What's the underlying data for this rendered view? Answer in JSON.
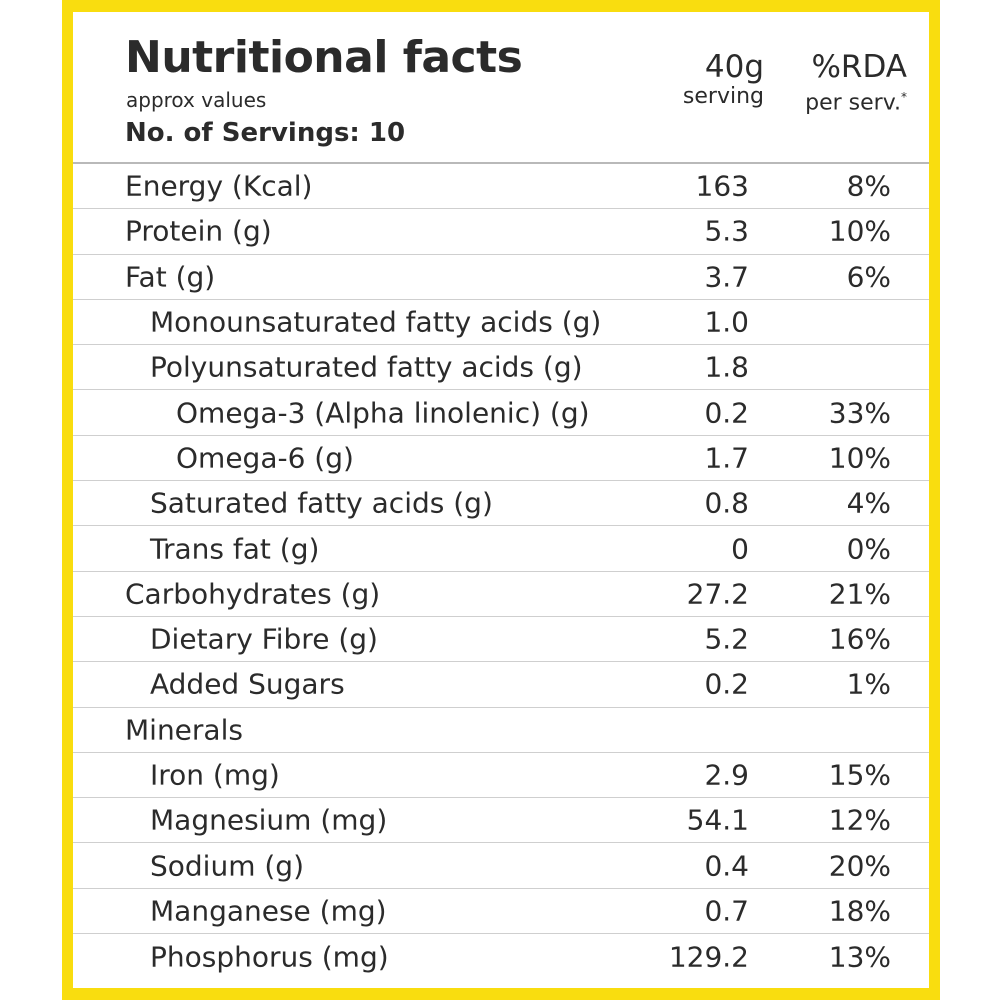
{
  "header": {
    "title": "Nutritional facts",
    "subtitle": "approx values",
    "servings": "No. of Servings: 10",
    "serving_col_top": "40g",
    "serving_col_bottom": "serving",
    "rda_col_top": "%RDA",
    "rda_col_bottom": "per serv.",
    "rda_footnote_mark": "*"
  },
  "colors": {
    "border_yellow": "#f9dd0f",
    "text": "#2b2b2b",
    "divider": "#cfcfcf"
  },
  "rows": [
    {
      "label": "Energy (Kcal)",
      "serving": "163",
      "rda": "8%",
      "level": 0
    },
    {
      "label": "Protein (g)",
      "serving": "5.3",
      "rda": "10%",
      "level": 0
    },
    {
      "label": "Fat (g)",
      "serving": "3.7",
      "rda": "6%",
      "level": 0
    },
    {
      "label": "Monounsaturated fatty acids (g)",
      "serving": "1.0",
      "rda": "",
      "level": 1
    },
    {
      "label": "Polyunsaturated fatty acids (g)",
      "serving": "1.8",
      "rda": "",
      "level": 1
    },
    {
      "label": "Omega-3 (Alpha linolenic) (g)",
      "serving": "0.2",
      "rda": "33%",
      "level": 2
    },
    {
      "label": "Omega-6 (g)",
      "serving": "1.7",
      "rda": "10%",
      "level": 2
    },
    {
      "label": "Saturated fatty acids (g)",
      "serving": "0.8",
      "rda": "4%",
      "level": 1
    },
    {
      "label": "Trans fat (g)",
      "serving": "0",
      "rda": "0%",
      "level": 1
    },
    {
      "label": "Carbohydrates (g)",
      "serving": "27.2",
      "rda": "21%",
      "level": 0
    },
    {
      "label": "Dietary Fibre (g)",
      "serving": "5.2",
      "rda": "16%",
      "level": 1
    },
    {
      "label": "Added Sugars",
      "serving": "0.2",
      "rda": "1%",
      "level": 1
    },
    {
      "label": "Minerals",
      "serving": "",
      "rda": "",
      "level": 0
    },
    {
      "label": "Iron (mg)",
      "serving": "2.9",
      "rda": "15%",
      "level": 1
    },
    {
      "label": "Magnesium (mg)",
      "serving": "54.1",
      "rda": "12%",
      "level": 1
    },
    {
      "label": "Sodium (g)",
      "serving": "0.4",
      "rda": "20%",
      "level": 1
    },
    {
      "label": "Manganese (mg)",
      "serving": "0.7",
      "rda": "18%",
      "level": 1
    },
    {
      "label": "Phosphorus (mg)",
      "serving": "129.2",
      "rda": "13%",
      "level": 1
    }
  ]
}
